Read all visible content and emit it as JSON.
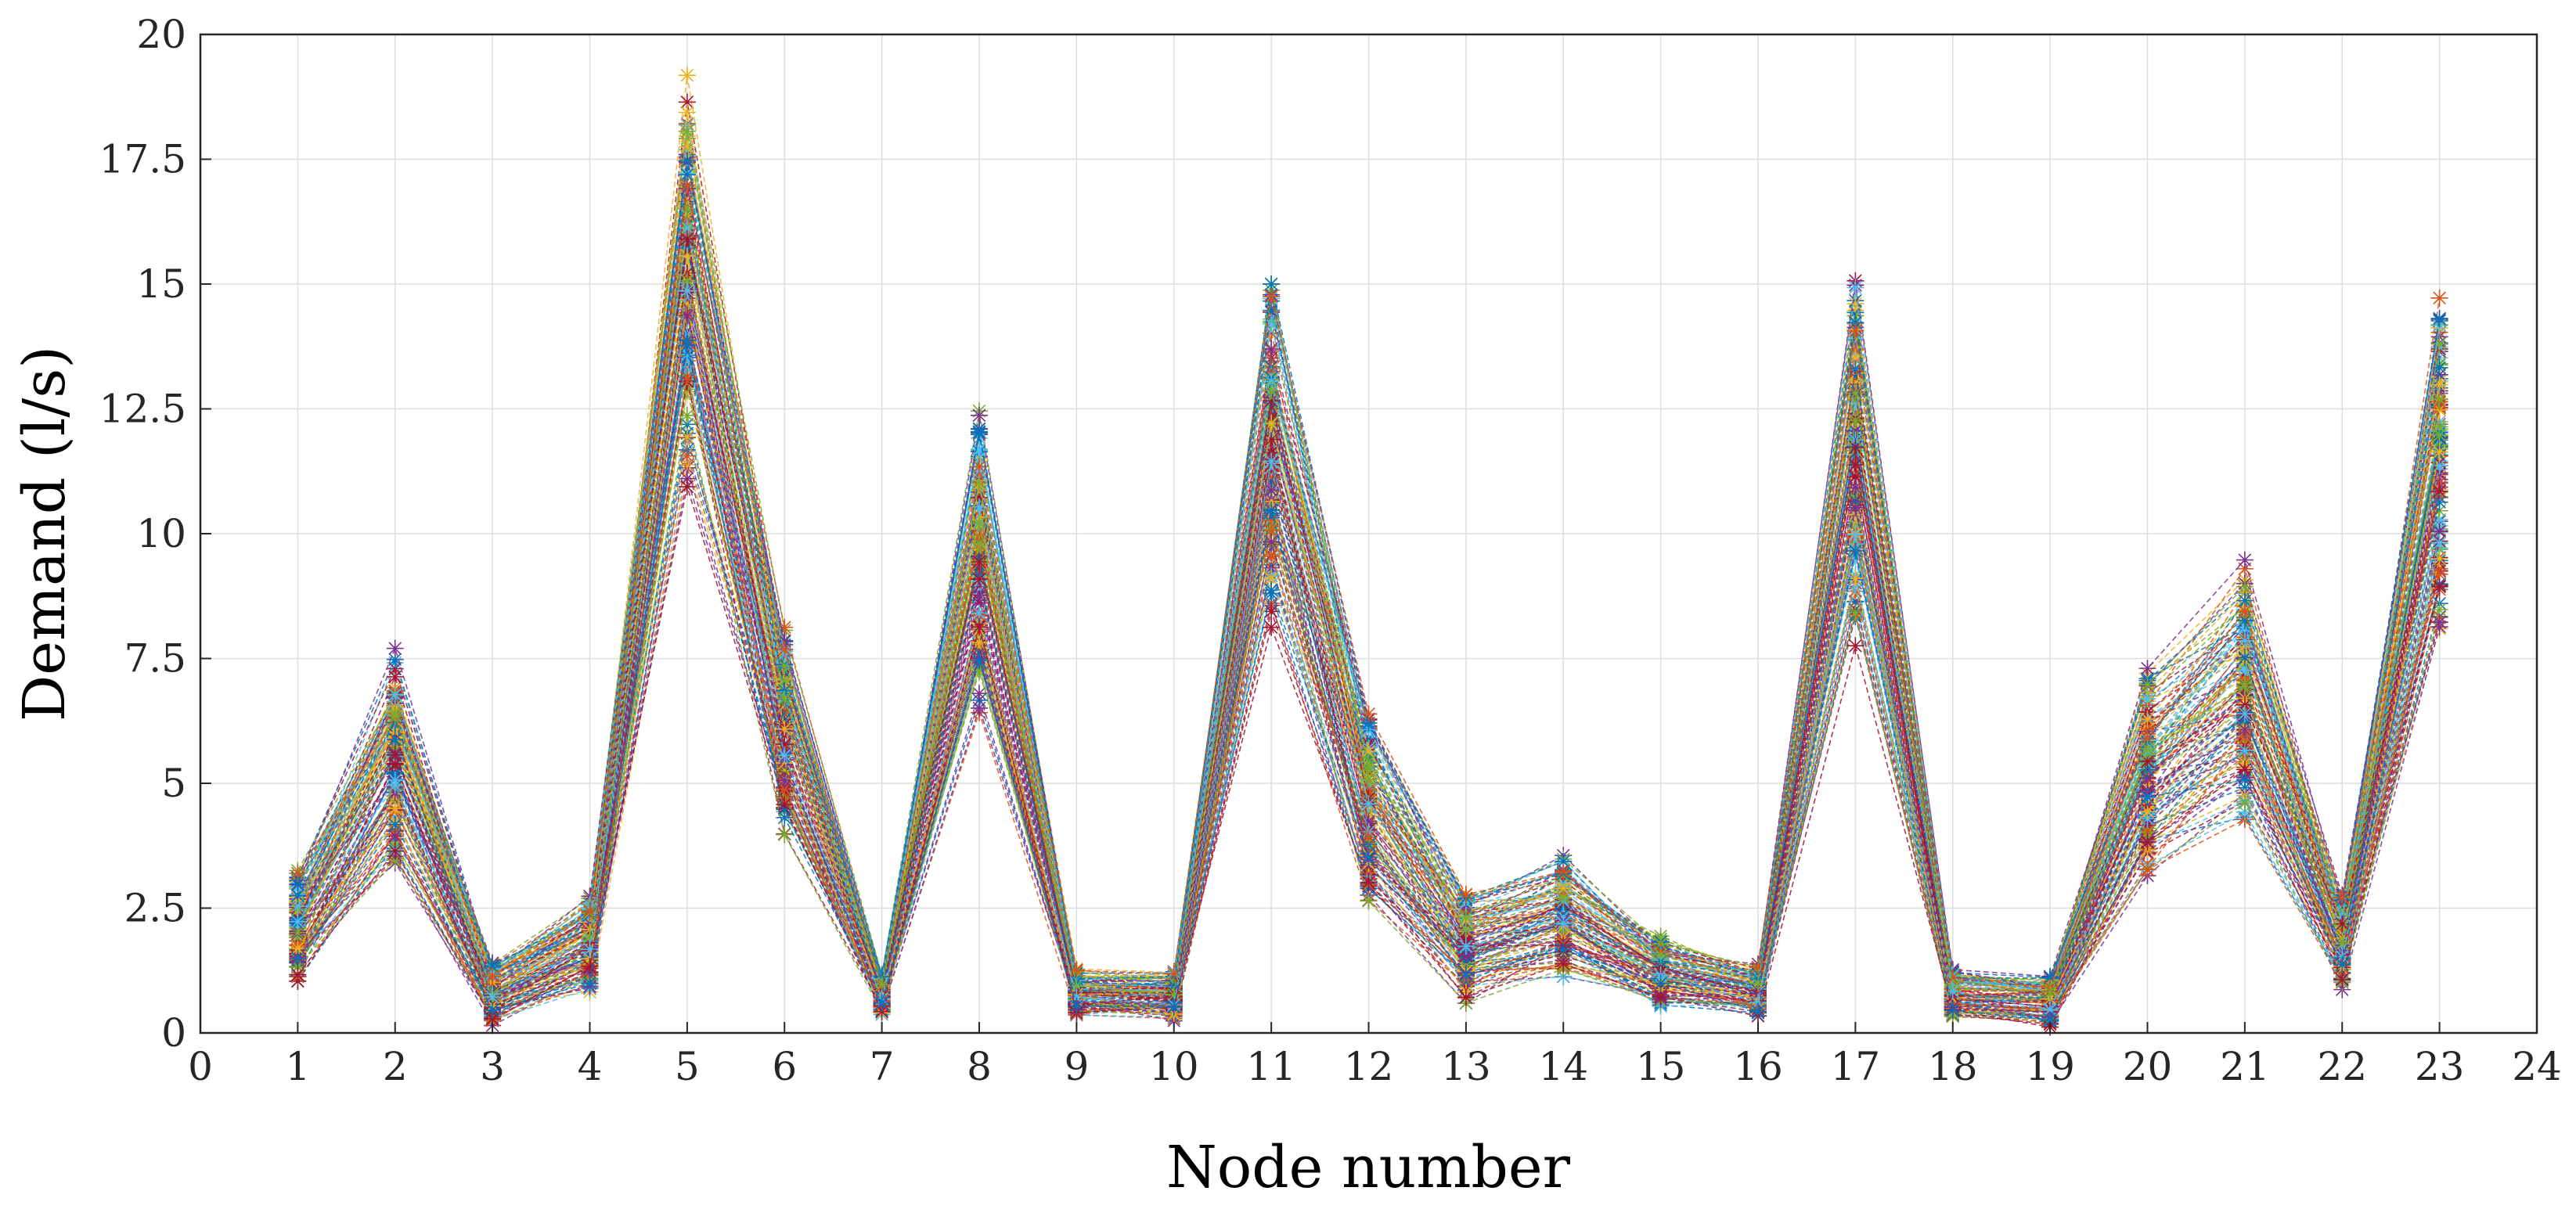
{
  "chart_data": {
    "type": "line",
    "title": "",
    "xlabel": "Node number",
    "ylabel": "Demand (l/s)",
    "xlim": [
      0,
      24
    ],
    "ylim": [
      0,
      20
    ],
    "grid": true,
    "legend": "none",
    "x_ticks": [
      "0",
      "1",
      "2",
      "3",
      "4",
      "5",
      "6",
      "7",
      "8",
      "9",
      "10",
      "11",
      "12",
      "13",
      "14",
      "15",
      "16",
      "17",
      "18",
      "19",
      "20",
      "21",
      "22",
      "23",
      "24"
    ],
    "y_ticks": [
      "0",
      "2.5",
      "5",
      "7.5",
      "10",
      "12.5",
      "15",
      "17.5",
      "20"
    ],
    "x": [
      1,
      2,
      3,
      4,
      5,
      6,
      7,
      8,
      9,
      10,
      11,
      12,
      13,
      14,
      15,
      16,
      17,
      18,
      19,
      20,
      21,
      22,
      23
    ],
    "marker": "asterisk",
    "line_style": "dashed",
    "series_count": 120,
    "series_colors": [
      "#0072BD",
      "#D95319",
      "#EDB120",
      "#7E2F8E",
      "#77AC30",
      "#4DBEEE",
      "#A2142F"
    ],
    "per_node_range": {
      "min": [
        0.8,
        3.2,
        0.1,
        0.7,
        10.8,
        3.7,
        0.3,
        6.2,
        0.3,
        0.2,
        8.0,
        2.4,
        0.5,
        1.0,
        0.4,
        0.3,
        7.5,
        0.2,
        0.1,
        2.9,
        4.0,
        0.8,
        7.5
      ],
      "max": [
        3.4,
        7.8,
        1.5,
        2.8,
        19.6,
        8.3,
        1.2,
        12.7,
        1.3,
        1.3,
        15.6,
        6.6,
        2.9,
        3.6,
        2.0,
        1.4,
        15.5,
        1.3,
        1.2,
        7.4,
        9.6,
        2.8,
        15.2
      ]
    }
  }
}
